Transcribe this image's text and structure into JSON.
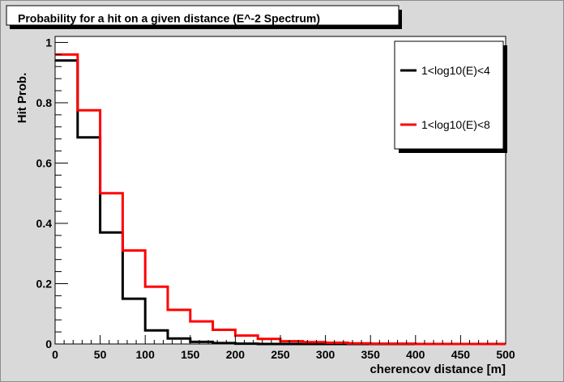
{
  "chart_data": {
    "type": "line",
    "style": "step-histogram",
    "title": "Probability for a hit on a given distance (E^-2 Spectrum)",
    "xlabel": "cherencov distance [m]",
    "ylabel": "Hit Prob.",
    "xlim": [
      0,
      500
    ],
    "ylim": [
      0,
      1.02
    ],
    "xticks": [
      0,
      50,
      100,
      150,
      200,
      250,
      300,
      350,
      400,
      450,
      500
    ],
    "xtick_labels": [
      "0",
      "50",
      "100",
      "150",
      "200",
      "250",
      "300",
      "350",
      "400",
      "450",
      "500"
    ],
    "yticks": [
      0,
      0.2,
      0.4,
      0.6,
      0.8,
      1
    ],
    "ytick_labels": [
      "0",
      "0.2",
      "0.4",
      "0.6",
      "0.8",
      "1"
    ],
    "grid": false,
    "legend_position": "top-right",
    "bin_edges": [
      0,
      25,
      50,
      75,
      100,
      125,
      150,
      175,
      200,
      225,
      250,
      275,
      300,
      325,
      350,
      375,
      400,
      425,
      450,
      475,
      500
    ],
    "series": [
      {
        "name": "1<log10(E)<4",
        "color": "#000000",
        "values": [
          0.94,
          0.685,
          0.37,
          0.15,
          0.045,
          0.018,
          0.007,
          0.003,
          0.001,
          0,
          0,
          0,
          0,
          0,
          0,
          0,
          0,
          0,
          0,
          0
        ]
      },
      {
        "name": "1<log10(E)<8",
        "color": "#ff0000",
        "values": [
          0.96,
          0.775,
          0.5,
          0.31,
          0.19,
          0.113,
          0.075,
          0.047,
          0.028,
          0.017,
          0.009,
          0.006,
          0.004,
          0.002,
          0.001,
          0.001,
          0,
          0,
          0,
          0
        ]
      }
    ]
  }
}
